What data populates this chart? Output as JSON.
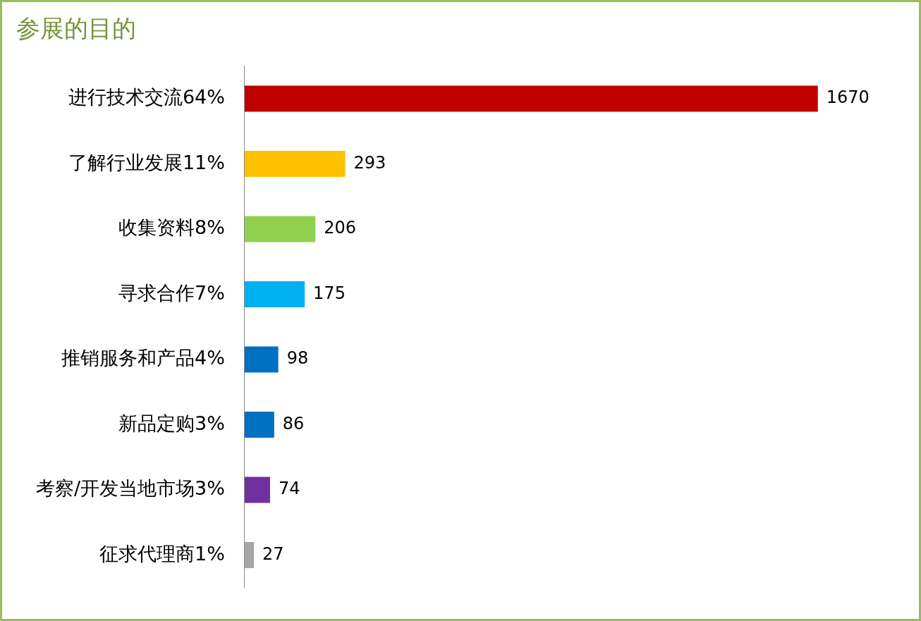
{
  "chart_data": {
    "type": "bar",
    "orientation": "horizontal",
    "title": "参展的目的",
    "categories": [
      "进行技术交流64%",
      "了解行业发展11%",
      "收集资料8%",
      "寻求合作7%",
      "推销服务和产品4%",
      "新品定购3%",
      "考察/开发当地市场3%",
      "征求代理商1%"
    ],
    "values": [
      1670,
      293,
      206,
      175,
      98,
      86,
      74,
      27
    ],
    "colors": [
      "#c00000",
      "#ffc000",
      "#92d050",
      "#00b0f0",
      "#0070c0",
      "#0070c0",
      "#7030a0",
      "#a6a6a6"
    ],
    "data_labels": true,
    "legend": false
  }
}
